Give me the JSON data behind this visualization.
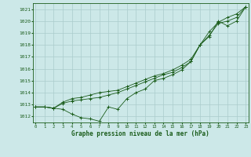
{
  "title": "Graphe pression niveau de la mer (hPa)",
  "background_color": "#cce8e8",
  "grid_color": "#aacccc",
  "line_color": "#1a5c1a",
  "ylim": [
    1011.5,
    1021.5
  ],
  "xlim": [
    -0.3,
    23.3
  ],
  "yticks": [
    1012,
    1013,
    1014,
    1015,
    1016,
    1017,
    1018,
    1019,
    1020,
    1021
  ],
  "xticks": [
    0,
    1,
    2,
    3,
    4,
    5,
    6,
    7,
    8,
    9,
    10,
    11,
    12,
    13,
    14,
    15,
    16,
    17,
    18,
    19,
    20,
    21,
    22,
    23
  ],
  "line1": [
    1012.8,
    1012.8,
    1012.7,
    1012.6,
    1012.2,
    1011.9,
    1011.8,
    1011.6,
    1012.8,
    1012.6,
    1013.5,
    1014.0,
    1014.3,
    1015.0,
    1015.2,
    1015.5,
    1015.9,
    1016.6,
    1018.0,
    1018.7,
    1020.0,
    1019.6,
    1020.0,
    1021.2
  ],
  "line2": [
    1012.8,
    1012.8,
    1012.7,
    1013.1,
    1013.3,
    1013.4,
    1013.5,
    1013.6,
    1013.8,
    1014.0,
    1014.3,
    1014.6,
    1014.9,
    1015.2,
    1015.5,
    1015.7,
    1016.1,
    1016.6,
    1018.0,
    1018.8,
    1019.8,
    1020.0,
    1020.3,
    1021.2
  ],
  "line3": [
    1012.8,
    1012.8,
    1012.7,
    1013.2,
    1013.5,
    1013.6,
    1013.8,
    1014.0,
    1014.1,
    1014.2,
    1014.5,
    1014.8,
    1015.1,
    1015.4,
    1015.6,
    1015.9,
    1016.3,
    1016.8,
    1018.0,
    1019.1,
    1019.9,
    1020.3,
    1020.6,
    1021.2
  ]
}
